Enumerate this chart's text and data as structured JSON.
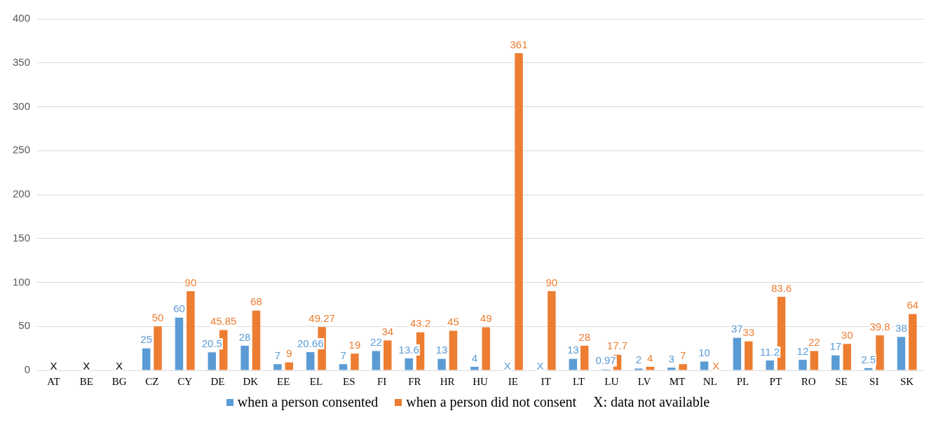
{
  "chart_data": {
    "type": "bar",
    "categories": [
      "AT",
      "BE",
      "BG",
      "CZ",
      "CY",
      "DE",
      "DK",
      "EE",
      "EL",
      "ES",
      "FI",
      "FR",
      "HR",
      "HU",
      "IE",
      "IT",
      "LT",
      "LU",
      "LV",
      "MT",
      "NL",
      "PL",
      "PT",
      "RO",
      "SE",
      "SI",
      "SK"
    ],
    "series": [
      {
        "name": "when a person consented",
        "color": "#5b9bd5",
        "values": [
          null,
          null,
          null,
          25,
          60,
          20.5,
          28,
          7,
          20.66,
          7,
          22,
          13.6,
          13,
          4,
          null,
          null,
          13,
          0.97,
          2,
          3,
          10,
          37,
          11.2,
          12,
          17,
          2.5,
          38
        ],
        "value_labels": [
          "X",
          "X",
          "X",
          "25",
          "60",
          "20.5",
          "28",
          "7",
          "20.66",
          "7",
          "22",
          "13.6",
          "13",
          "4",
          "X",
          "X",
          "13",
          "0.97",
          "2",
          "3",
          "10",
          "37",
          "11.2",
          "12",
          "17",
          "2.5",
          "38"
        ]
      },
      {
        "name": "when a person did not consent",
        "color": "#ed7d31",
        "values": [
          null,
          null,
          null,
          50,
          90,
          45.85,
          68,
          9,
          49.27,
          19,
          34,
          43.2,
          45,
          49,
          361,
          90,
          28,
          17.7,
          4,
          7,
          null,
          33,
          83.6,
          22,
          30,
          39.8,
          64
        ],
        "value_labels": [
          null,
          null,
          null,
          "50",
          "90",
          "45.85",
          "68",
          "9",
          "49.27",
          "19",
          "34",
          "43.2",
          "45",
          "49",
          "361",
          "90",
          "28",
          "17.7",
          "4",
          "7",
          "X",
          "33",
          "83.6",
          "22",
          "30",
          "39.8",
          "64"
        ]
      }
    ],
    "annotations": [
      "X: data not available"
    ],
    "ylim": [
      0,
      400
    ],
    "yticks": [
      0,
      50,
      100,
      150,
      200,
      250,
      300,
      350,
      400
    ],
    "grid": "y",
    "legend": "bottom"
  }
}
